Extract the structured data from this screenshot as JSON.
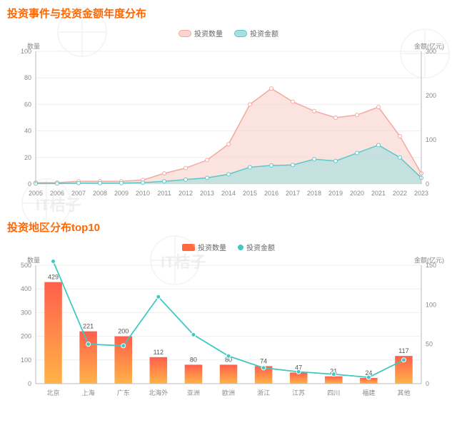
{
  "chart1": {
    "title": "投资事件与投资金额年度分布",
    "type": "area",
    "legend": [
      {
        "label": "投资数量",
        "color": "#f4a8a0",
        "fill": "#f9d6cf"
      },
      {
        "label": "投资金额",
        "color": "#5ac8c8",
        "fill": "#a8dede"
      }
    ],
    "left_axis_label": "数量",
    "right_axis_label": "金额(亿元)",
    "x_categories": [
      "2005",
      "2006",
      "2007",
      "2008",
      "2009",
      "2010",
      "2011",
      "2012",
      "2013",
      "2014",
      "2015",
      "2016",
      "2017",
      "2018",
      "2019",
      "2020",
      "2021",
      "2022",
      "2023"
    ],
    "series_count": [
      1,
      1,
      2,
      2,
      2,
      3,
      8,
      12,
      18,
      30,
      60,
      72,
      62,
      55,
      50,
      52,
      58,
      36,
      8
    ],
    "series_amount": [
      1,
      1,
      2,
      2,
      2,
      3,
      6,
      10,
      14,
      22,
      38,
      42,
      43,
      56,
      52,
      70,
      88,
      60,
      14
    ],
    "y_left": {
      "min": 0,
      "max": 100,
      "step": 20
    },
    "y_right": {
      "min": 0,
      "max": 300,
      "step": 100
    },
    "grid_color": "#eeeeee",
    "axis_color": "#bbbbbb",
    "text_color": "#888888",
    "plot_bg": "#ffffff",
    "marker_color": "#ffffff",
    "marker_stroke_count": "#f4a8a0",
    "marker_stroke_amount": "#5ac8c8",
    "label_fontsize": 9
  },
  "chart2": {
    "title": "投资地区分布top10",
    "type": "bar+line",
    "legend": [
      {
        "label": "投资数量",
        "color": "#ff6a3d"
      },
      {
        "label": "投资金额",
        "color": "#3fc9c1"
      }
    ],
    "left_axis_label": "数量",
    "right_axis_label": "金额(亿元)",
    "x_categories": [
      "北京",
      "上海",
      "广东",
      "北海外",
      "亚洲",
      "欧洲",
      "浙江",
      "江苏",
      "四川",
      "福建",
      "其他"
    ],
    "bar_values": [
      429,
      221,
      200,
      112,
      80,
      80,
      74,
      47,
      31,
      24,
      117
    ],
    "line_values": [
      155,
      50,
      48,
      110,
      62,
      35,
      20,
      15,
      12,
      8,
      30
    ],
    "y_left": {
      "min": 0,
      "max": 500,
      "step": 100
    },
    "y_right": {
      "min": 0,
      "max": 150,
      "step": 50
    },
    "bar_gradient_top": "#ff5f4c",
    "bar_gradient_bottom": "#ffb347",
    "line_color": "#3fc9c1",
    "grid_color": "#eeeeee",
    "axis_color": "#bbbbbb",
    "text_color": "#888888",
    "value_label_color": "#555555",
    "label_fontsize": 9,
    "bar_width_ratio": 0.5
  },
  "watermark_text": "IT桔子"
}
